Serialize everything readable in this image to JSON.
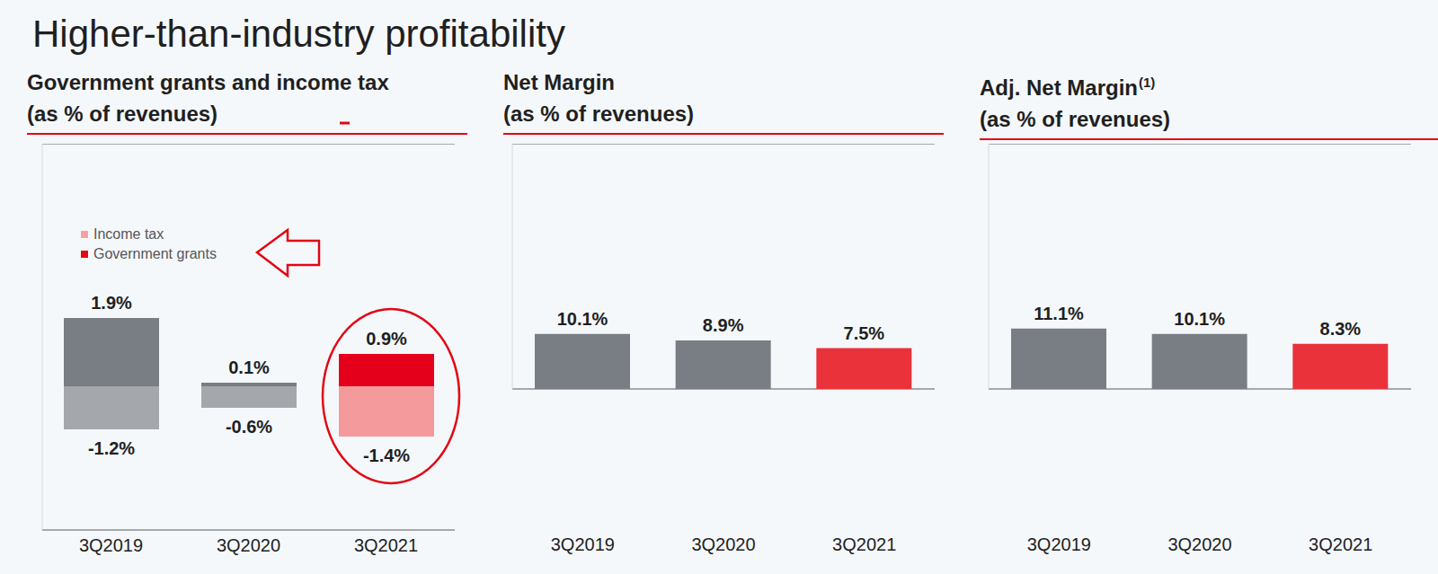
{
  "title": "Higher-than-industry profitability",
  "chart_data": [
    {
      "type": "bar",
      "title": "Government grants and income tax",
      "subtitle": "(as % of revenues)",
      "categories": [
        "3Q2019",
        "3Q2020",
        "3Q2021"
      ],
      "series": [
        {
          "name": "Income tax",
          "color": "#f4a0a6",
          "colors": [
            "#a4a8ac",
            "#a4a8ac",
            "#f49a9c"
          ],
          "values": [
            -1.2,
            -0.6,
            -1.4
          ],
          "value_labels": [
            "-1.2%",
            "-0.6%",
            "-1.4%"
          ]
        },
        {
          "name": "Government grants",
          "color": "#e30613",
          "colors": [
            "#787e83",
            "#787e83",
            "#e4001b"
          ],
          "values": [
            1.9,
            0.1,
            0.9
          ],
          "value_labels": [
            "1.9%",
            "0.1%",
            "0.9%"
          ]
        }
      ],
      "stacked": true,
      "data_labels": true,
      "legend": "upper left",
      "ylim": [
        -4,
        6.75
      ],
      "yticks": [
        0
      ],
      "grid": true,
      "tick_labels": "x"
    },
    {
      "type": "bar",
      "title": "Net Margin",
      "subtitle": "(as % of revenues)",
      "categories": [
        "3Q2019",
        "3Q2020",
        "3Q2021"
      ],
      "values": [
        10.1,
        8.9,
        7.5
      ],
      "value_labels": [
        "10.1%",
        "8.9%",
        "7.5%"
      ],
      "colors": [
        "#787e83",
        "#787e83",
        "#e9323a"
      ],
      "data_labels": true,
      "ylim": [
        0,
        45
      ],
      "yticks": [
        0
      ],
      "grid": true,
      "tick_labels": "x"
    },
    {
      "type": "bar",
      "title": "Adj. Net Margin",
      "title_note": "(1)",
      "subtitle": "(as % of revenues)",
      "categories": [
        "3Q2019",
        "3Q2020",
        "3Q2021"
      ],
      "values": [
        11.1,
        10.1,
        8.3
      ],
      "value_labels": [
        "11.1%",
        "10.1%",
        "8.3%"
      ],
      "colors": [
        "#787e83",
        "#787e83",
        "#e9323a"
      ],
      "data_labels": true,
      "ylim": [
        0,
        45
      ],
      "yticks": [
        0
      ],
      "grid": true,
      "tick_labels": "x"
    }
  ]
}
